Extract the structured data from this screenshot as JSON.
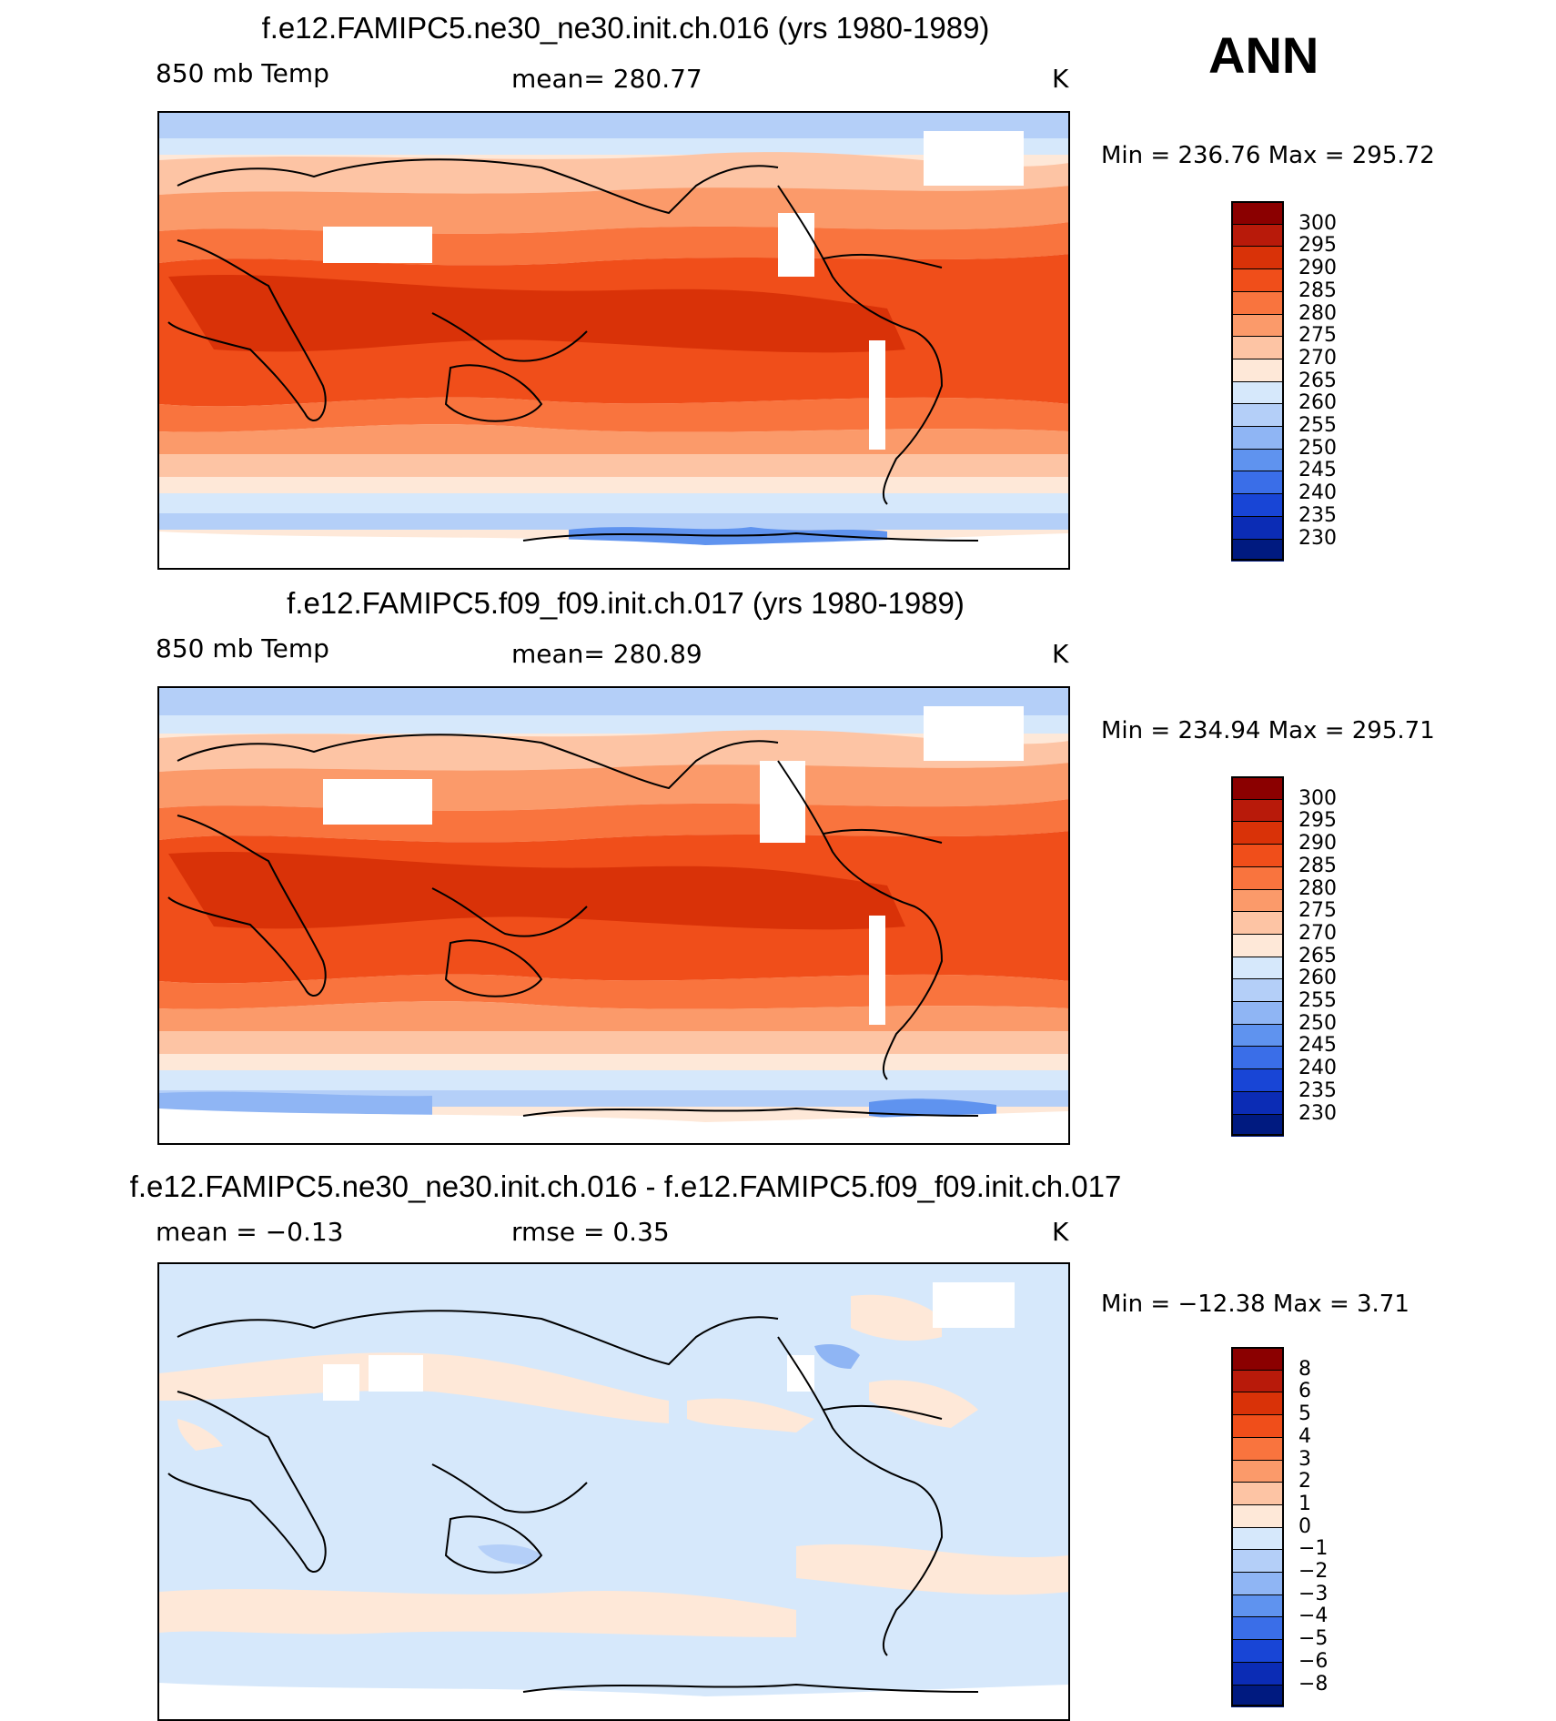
{
  "season": "ANN",
  "panels": [
    {
      "title": "f.e12.FAMIPC5.ne30_ne30.init.ch.016 (yrs 1980-1989)",
      "left_text": "850 mb Temp",
      "center_text": "mean= 280.77",
      "units": "K",
      "minmax": "Min  =  236.76  Max  =  295.72",
      "colorbar": {
        "levels": [
          "300",
          "295",
          "290",
          "285",
          "280",
          "275",
          "270",
          "265",
          "260",
          "255",
          "250",
          "245",
          "240",
          "235",
          "230"
        ],
        "colors": [
          "#8b0000",
          "#b81a0a",
          "#d93208",
          "#f04e1a",
          "#f9743e",
          "#fb9a6a",
          "#fdc4a4",
          "#fee8d8",
          "#d6e8fb",
          "#b4cff8",
          "#8fb5f4",
          "#5f93ef",
          "#3a6ee8",
          "#1845d6",
          "#0b2cb5",
          "#001a80"
        ]
      }
    },
    {
      "title": "f.e12.FAMIPC5.f09_f09.init.ch.017 (yrs 1980-1989)",
      "left_text": "850 mb Temp",
      "center_text": "mean= 280.89",
      "units": "K",
      "minmax": "Min  =  234.94  Max  =  295.71",
      "colorbar": {
        "levels": [
          "300",
          "295",
          "290",
          "285",
          "280",
          "275",
          "270",
          "265",
          "260",
          "255",
          "250",
          "245",
          "240",
          "235",
          "230"
        ],
        "colors": [
          "#8b0000",
          "#b81a0a",
          "#d93208",
          "#f04e1a",
          "#f9743e",
          "#fb9a6a",
          "#fdc4a4",
          "#fee8d8",
          "#d6e8fb",
          "#b4cff8",
          "#8fb5f4",
          "#5f93ef",
          "#3a6ee8",
          "#1845d6",
          "#0b2cb5",
          "#001a80"
        ]
      }
    },
    {
      "title": "f.e12.FAMIPC5.ne30_ne30.init.ch.016 - f.e12.FAMIPC5.f09_f09.init.ch.017",
      "left_text": "mean =   −0.13",
      "center_text": "rmse =    0.35",
      "units": "K",
      "minmax": "Min  = −12.38  Max  =     3.71",
      "colorbar": {
        "levels": [
          "8",
          "6",
          "5",
          "4",
          "3",
          "2",
          "1",
          "0",
          "−1",
          "−2",
          "−3",
          "−4",
          "−5",
          "−6",
          "−8"
        ],
        "colors": [
          "#8b0000",
          "#b81a0a",
          "#d93208",
          "#f04e1a",
          "#f9743e",
          "#fb9a6a",
          "#fdc4a4",
          "#fee8d8",
          "#d6e8fb",
          "#b4cff8",
          "#8fb5f4",
          "#5f93ef",
          "#3a6ee8",
          "#1845d6",
          "#0b2cb5",
          "#001a80"
        ]
      }
    }
  ]
}
